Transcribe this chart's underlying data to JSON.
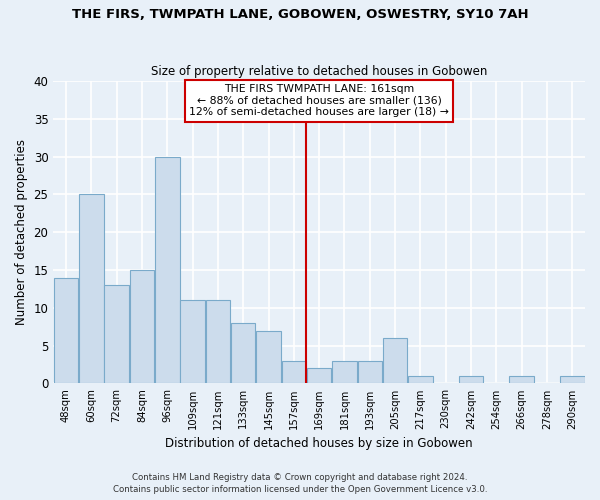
{
  "title": "THE FIRS, TWMPATH LANE, GOBOWEN, OSWESTRY, SY10 7AH",
  "subtitle": "Size of property relative to detached houses in Gobowen",
  "xlabel": "Distribution of detached houses by size in Gobowen",
  "ylabel": "Number of detached properties",
  "bar_labels": [
    "48sqm",
    "60sqm",
    "72sqm",
    "84sqm",
    "96sqm",
    "109sqm",
    "121sqm",
    "133sqm",
    "145sqm",
    "157sqm",
    "169sqm",
    "181sqm",
    "193sqm",
    "205sqm",
    "217sqm",
    "230sqm",
    "242sqm",
    "254sqm",
    "266sqm",
    "278sqm",
    "290sqm"
  ],
  "bar_values": [
    14,
    25,
    13,
    15,
    30,
    11,
    11,
    8,
    7,
    3,
    2,
    3,
    3,
    6,
    1,
    0,
    1,
    0,
    1,
    0,
    1
  ],
  "bar_color": "#ccdcec",
  "bar_edge_color": "#7aaaca",
  "vline_x_index": 9.5,
  "vline_color": "#cc0000",
  "annotation_box_text": "THE FIRS TWMPATH LANE: 161sqm\n← 88% of detached houses are smaller (136)\n12% of semi-detached houses are larger (18) →",
  "ylim": [
    0,
    40
  ],
  "yticks": [
    0,
    5,
    10,
    15,
    20,
    25,
    30,
    35,
    40
  ],
  "footer_line1": "Contains HM Land Registry data © Crown copyright and database right 2024.",
  "footer_line2": "Contains public sector information licensed under the Open Government Licence v3.0.",
  "background_color": "#e8f0f8",
  "grid_color": "#ffffff"
}
